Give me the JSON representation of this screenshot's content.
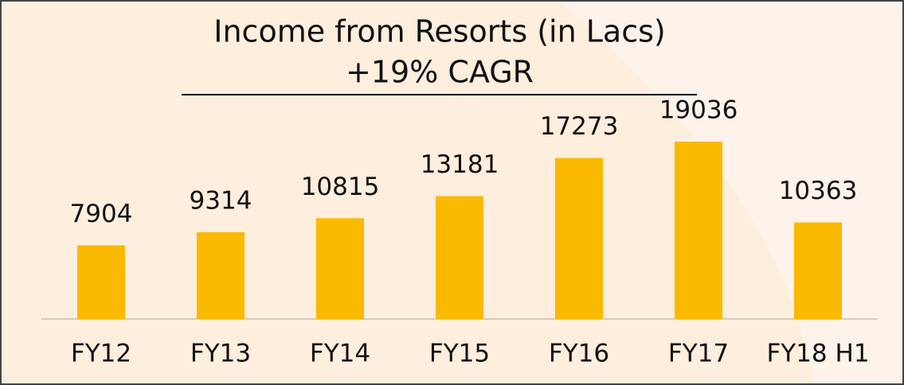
{
  "chart_data": {
    "type": "bar",
    "title": "Income from Resorts (in Lacs)",
    "subtitle": "+19% CAGR",
    "categories": [
      "FY12",
      "FY13",
      "FY14",
      "FY15",
      "FY16",
      "FY17",
      "FY18 H1"
    ],
    "values": [
      7904,
      9314,
      10815,
      13181,
      17273,
      19036,
      10363
    ],
    "color": "#fbb900"
  }
}
